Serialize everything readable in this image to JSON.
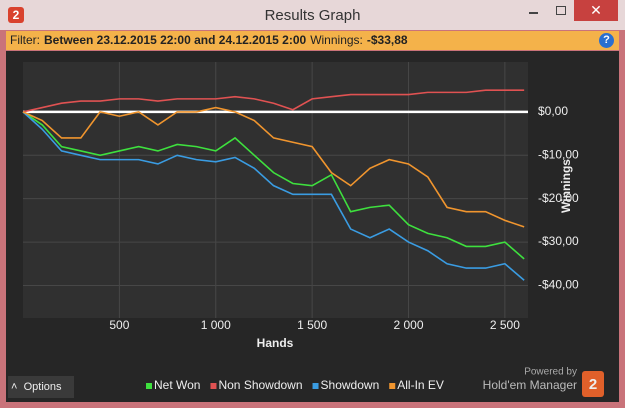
{
  "window": {
    "logo": "2",
    "title": "Results Graph"
  },
  "filter": {
    "label": "Filter:",
    "range": "Between 23.12.2015 22:00 and 24.12.2015 2:00",
    "winnings_label": "Winnings:",
    "winnings": "-$33,88",
    "help": "?"
  },
  "chart_data": {
    "type": "line",
    "x_label": "Hands",
    "y_label": "Winnings",
    "x": [
      0,
      100,
      200,
      300,
      400,
      500,
      600,
      700,
      800,
      900,
      1000,
      1100,
      1200,
      1300,
      1400,
      1500,
      1600,
      1700,
      1800,
      1900,
      2000,
      2100,
      2200,
      2300,
      2400,
      2500,
      2600
    ],
    "series": [
      {
        "name": "Net Won",
        "color": "#3ee03e",
        "values": [
          0,
          -3,
          -8,
          -9,
          -10,
          -9,
          -8,
          -9,
          -7.5,
          -8,
          -9,
          -6,
          -10,
          -14,
          -16.5,
          -17,
          -14.5,
          -23,
          -22,
          -21.5,
          -26,
          -28,
          -29,
          -31,
          -31,
          -30,
          -33.88
        ]
      },
      {
        "name": "Non Showdown",
        "color": "#e05252",
        "values": [
          0,
          1,
          2,
          2.5,
          2.5,
          3,
          3,
          2.5,
          3,
          3,
          3,
          3.5,
          3,
          2,
          0.5,
          3,
          3.5,
          4,
          4,
          4,
          4,
          4.5,
          4.5,
          4.5,
          5,
          5,
          5
        ]
      },
      {
        "name": "Showdown",
        "color": "#3a9ce2",
        "values": [
          0,
          -4,
          -9,
          -10,
          -11,
          -11,
          -11,
          -12,
          -10,
          -11,
          -11.5,
          -10.5,
          -13,
          -17,
          -19,
          -19,
          -19,
          -27,
          -29,
          -27,
          -30,
          -32,
          -35,
          -36,
          -36,
          -35,
          -38.8
        ]
      },
      {
        "name": "All-In EV",
        "color": "#f0952e",
        "values": [
          0,
          -2,
          -6,
          -6,
          0,
          -1,
          0,
          -3,
          0,
          0,
          1,
          0,
          -2,
          -6,
          -7,
          -8,
          -14,
          -17,
          -13,
          -11,
          -12,
          -15,
          -22,
          -23,
          -23,
          -25,
          -26.5
        ]
      }
    ],
    "xlim": [
      0,
      2620
    ],
    "ylim": [
      -47.5,
      11.5
    ],
    "xticks": [
      500,
      {
        "value": 1000,
        "label": "1 000"
      },
      {
        "value": 1500,
        "label": "1 500"
      },
      {
        "value": 2000,
        "label": "2 000"
      },
      {
        "value": 2500,
        "label": "2 500"
      }
    ],
    "yticks": [
      {
        "value": 0,
        "label": "$0,00"
      },
      {
        "value": -10,
        "label": "-$10,00"
      },
      {
        "value": -20,
        "label": "-$20,00"
      },
      {
        "value": -30,
        "label": "-$30,00"
      },
      {
        "value": -40,
        "label": "-$40,00"
      }
    ],
    "grid": true,
    "legend": "bottom"
  },
  "footer": {
    "options": "Options",
    "powered_by": "Powered by",
    "brand": "Hold'em Manager",
    "brand_logo": "2"
  }
}
